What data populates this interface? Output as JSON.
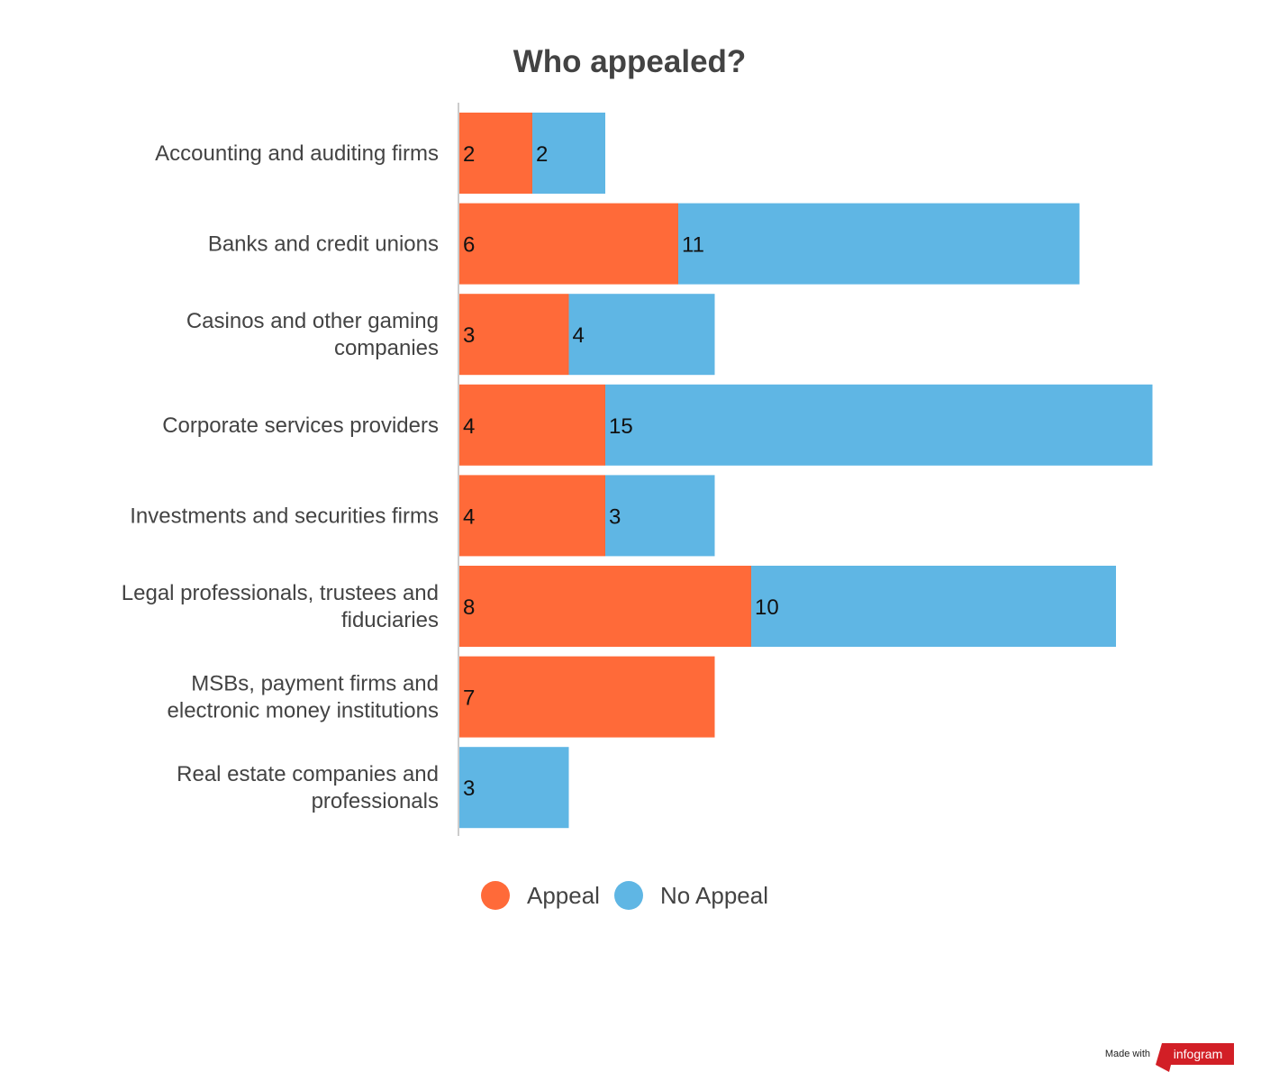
{
  "chart_data": {
    "type": "bar",
    "orientation": "horizontal",
    "stacked": true,
    "title": "Who appealed?",
    "categories": [
      "Accounting and auditing firms",
      "Banks and credit unions",
      "Casinos and other gaming companies",
      "Corporate services providers",
      "Investments and securities firms",
      "Legal professionals, trustees and fiduciaries",
      "MSBs, payment firms and electronic money institutions",
      "Real estate companies and professionals"
    ],
    "category_lines": [
      [
        "Accounting and auditing firms"
      ],
      [
        "Banks and credit unions"
      ],
      [
        "Casinos and other gaming",
        "companies"
      ],
      [
        "Corporate services providers"
      ],
      [
        "Investments and securities firms"
      ],
      [
        "Legal professionals, trustees and",
        "fiduciaries"
      ],
      [
        "MSBs, payment firms and",
        "electronic money institutions"
      ],
      [
        "Real estate companies and",
        "professionals"
      ]
    ],
    "series": [
      {
        "name": "Appeal",
        "color": "#ff6a39",
        "values": [
          2,
          6,
          3,
          4,
          4,
          8,
          7,
          0
        ]
      },
      {
        "name": "No Appeal",
        "color": "#5fb6e4",
        "values": [
          2,
          11,
          4,
          15,
          3,
          10,
          0,
          3
        ]
      }
    ],
    "xlim": [
      0,
      19
    ],
    "grid": false,
    "legend_position": "bottom"
  },
  "footer": {
    "made_with": "Made with",
    "brand": "infogram",
    "brand_color": "#d21f26"
  }
}
